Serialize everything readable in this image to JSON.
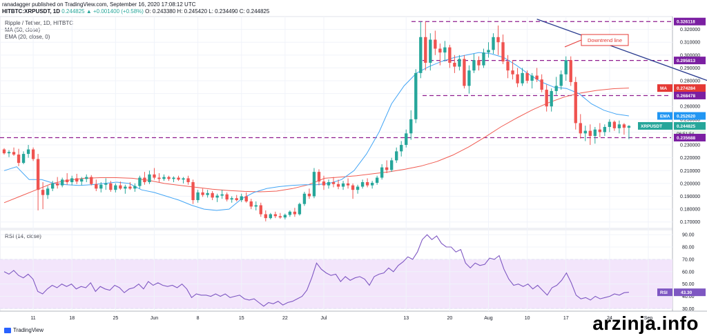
{
  "header": {
    "published": "ranadagger published on TradingView.com, September 16, 2020 17:08:12 UTC",
    "symbol": "HITBTC:XRPUSDT, 1D",
    "change": "0.244825 ▲ +0.001400 (+0.58%)",
    "ohlc": "O: 0.243380 H: 0.245420 L: 0.234490 C: 0.244825"
  },
  "legend": {
    "title": "Ripple / Tether, 1D, HITBTC",
    "ma": "MA (50, close)",
    "ema": "EMA (20, close, 0)",
    "rsi": "RSI (14, close)"
  },
  "annotation": "Downtrend line",
  "footer": {
    "brand": "TradingView",
    "watermark": "arzinja.info"
  },
  "colors": {
    "up": "#26a69a",
    "down": "#ef5350",
    "ma": "#f05a50",
    "ema": "#42a5f5",
    "trend": "#2a3b8f",
    "dash": "#8e1b8e",
    "rsi": "#7e57c2",
    "rsiband": "#f3e5fb"
  },
  "chart_data": [
    {
      "type": "candlestick",
      "title": "Ripple / Tether, 1D, HITBTC",
      "currency": "USDT",
      "ylim": [
        0.165,
        0.33
      ],
      "y_ticks": [
        0.17,
        0.18,
        0.19,
        0.2,
        0.21,
        0.22,
        0.23,
        0.24,
        0.25,
        0.26,
        0.27,
        0.28,
        0.29,
        0.3,
        0.31,
        0.32
      ],
      "x_ticks": [
        "11",
        "18",
        "25",
        "Jun",
        "8",
        "15",
        "22",
        "Jul",
        "13",
        "20",
        "Aug",
        "10",
        "17",
        "24",
        "Sep",
        "14"
      ],
      "horizontal_levels": [
        0.326118,
        0.295813,
        0.268478,
        0.235688
      ],
      "price_tags": {
        "resistance_top": "0.326118",
        "resistance_mid": "0.295813",
        "ma_value": "0.274284",
        "ma_label": "MA",
        "level_mid": "0.268478",
        "ema_value": "0.252620",
        "ema_label": "EMA",
        "symbol_tag": "XRPUSDT",
        "last_price": "0.244825",
        "countdown": "06:51:54",
        "support": "0.235688"
      },
      "downtrend_line": {
        "from_index": 110,
        "from_value": 0.328,
        "to_index": 149,
        "to_value": 0.275
      },
      "candles": [
        [
          0.2265,
          0.2275,
          0.2225,
          0.2235
        ],
        [
          0.2235,
          0.226,
          0.2205,
          0.2245
        ],
        [
          0.2245,
          0.228,
          0.2215,
          0.2225
        ],
        [
          0.2225,
          0.227,
          0.2135,
          0.216
        ],
        [
          0.216,
          0.225,
          0.215,
          0.223
        ],
        [
          0.223,
          0.23,
          0.22,
          0.2265
        ],
        [
          0.2265,
          0.228,
          0.2175,
          0.219
        ],
        [
          0.219,
          0.223,
          0.179,
          0.195
        ],
        [
          0.195,
          0.201,
          0.18,
          0.191
        ],
        [
          0.191,
          0.198,
          0.188,
          0.196
        ],
        [
          0.196,
          0.202,
          0.194,
          0.2
        ],
        [
          0.2,
          0.205,
          0.196,
          0.1985
        ],
        [
          0.1985,
          0.2045,
          0.197,
          0.203
        ],
        [
          0.203,
          0.208,
          0.199,
          0.201
        ],
        [
          0.201,
          0.206,
          0.1985,
          0.204
        ],
        [
          0.204,
          0.2075,
          0.1995,
          0.2015
        ],
        [
          0.2015,
          0.205,
          0.1985,
          0.2035
        ],
        [
          0.2035,
          0.207,
          0.201,
          0.205
        ],
        [
          0.205,
          0.2065,
          0.1985,
          0.1995
        ],
        [
          0.1995,
          0.203,
          0.194,
          0.196
        ],
        [
          0.196,
          0.201,
          0.193,
          0.199
        ],
        [
          0.199,
          0.204,
          0.195,
          0.2
        ],
        [
          0.2,
          0.202,
          0.1935,
          0.195
        ],
        [
          0.195,
          0.2,
          0.193,
          0.1985
        ],
        [
          0.1985,
          0.2015,
          0.195,
          0.196
        ],
        [
          0.196,
          0.199,
          0.192,
          0.1975
        ],
        [
          0.1975,
          0.201,
          0.195,
          0.196
        ],
        [
          0.196,
          0.2,
          0.1935,
          0.198
        ],
        [
          0.198,
          0.206,
          0.196,
          0.2045
        ],
        [
          0.2045,
          0.209,
          0.199,
          0.201
        ],
        [
          0.201,
          0.21,
          0.1995,
          0.207
        ],
        [
          0.207,
          0.212,
          0.203,
          0.2045
        ],
        [
          0.2045,
          0.208,
          0.201,
          0.2035
        ],
        [
          0.2035,
          0.207,
          0.202,
          0.205
        ],
        [
          0.205,
          0.206,
          0.202,
          0.2035
        ],
        [
          0.2035,
          0.2055,
          0.201,
          0.2045
        ],
        [
          0.2045,
          0.206,
          0.202,
          0.203
        ],
        [
          0.203,
          0.205,
          0.2,
          0.204
        ],
        [
          0.204,
          0.206,
          0.199,
          0.201
        ],
        [
          0.201,
          0.203,
          0.184,
          0.187
        ],
        [
          0.187,
          0.195,
          0.185,
          0.193
        ],
        [
          0.193,
          0.196,
          0.1895,
          0.191
        ],
        [
          0.191,
          0.195,
          0.189,
          0.1925
        ],
        [
          0.1925,
          0.194,
          0.187,
          0.189
        ],
        [
          0.189,
          0.192,
          0.1855,
          0.1905
        ],
        [
          0.1905,
          0.195,
          0.188,
          0.1915
        ],
        [
          0.1915,
          0.193,
          0.186,
          0.1875
        ],
        [
          0.1875,
          0.19,
          0.185,
          0.1885
        ],
        [
          0.1885,
          0.191,
          0.186,
          0.187
        ],
        [
          0.187,
          0.192,
          0.1855,
          0.19
        ],
        [
          0.19,
          0.193,
          0.185,
          0.186
        ],
        [
          0.186,
          0.188,
          0.18,
          0.182
        ],
        [
          0.182,
          0.186,
          0.179,
          0.183
        ],
        [
          0.183,
          0.185,
          0.174,
          0.176
        ],
        [
          0.176,
          0.179,
          0.1705,
          0.173
        ],
        [
          0.173,
          0.177,
          0.172,
          0.176
        ],
        [
          0.176,
          0.178,
          0.173,
          0.1745
        ],
        [
          0.1745,
          0.177,
          0.1725,
          0.1735
        ],
        [
          0.1735,
          0.1765,
          0.172,
          0.1755
        ],
        [
          0.1755,
          0.179,
          0.174,
          0.178
        ],
        [
          0.178,
          0.181,
          0.174,
          0.176
        ],
        [
          0.176,
          0.185,
          0.175,
          0.184
        ],
        [
          0.184,
          0.1935,
          0.1825,
          0.192
        ],
        [
          0.192,
          0.196,
          0.188,
          0.19
        ],
        [
          0.19,
          0.212,
          0.1885,
          0.209
        ],
        [
          0.209,
          0.211,
          0.1985,
          0.2015
        ],
        [
          0.2015,
          0.206,
          0.195,
          0.1985
        ],
        [
          0.1985,
          0.203,
          0.196,
          0.201
        ],
        [
          0.201,
          0.205,
          0.197,
          0.1995
        ],
        [
          0.1995,
          0.203,
          0.1955,
          0.1975
        ],
        [
          0.1975,
          0.202,
          0.195,
          0.2
        ],
        [
          0.2,
          0.204,
          0.196,
          0.1985
        ],
        [
          0.1985,
          0.2,
          0.188,
          0.195
        ],
        [
          0.195,
          0.199,
          0.192,
          0.1975
        ],
        [
          0.1975,
          0.203,
          0.196,
          0.201
        ],
        [
          0.201,
          0.204,
          0.197,
          0.1985
        ],
        [
          0.1985,
          0.202,
          0.196,
          0.2005
        ],
        [
          0.2005,
          0.206,
          0.199,
          0.2045
        ],
        [
          0.2045,
          0.215,
          0.203,
          0.2125
        ],
        [
          0.2125,
          0.218,
          0.208,
          0.2105
        ],
        [
          0.2105,
          0.22,
          0.209,
          0.218
        ],
        [
          0.218,
          0.228,
          0.216,
          0.225
        ],
        [
          0.225,
          0.233,
          0.221,
          0.23
        ],
        [
          0.23,
          0.242,
          0.228,
          0.239
        ],
        [
          0.239,
          0.257,
          0.234,
          0.25
        ],
        [
          0.25,
          0.289,
          0.247,
          0.286
        ],
        [
          0.286,
          0.326,
          0.282,
          0.314
        ],
        [
          0.314,
          0.326,
          0.288,
          0.294
        ],
        [
          0.294,
          0.317,
          0.288,
          0.312
        ],
        [
          0.312,
          0.319,
          0.3,
          0.305
        ],
        [
          0.305,
          0.309,
          0.292,
          0.302
        ],
        [
          0.302,
          0.311,
          0.295,
          0.306
        ],
        [
          0.306,
          0.308,
          0.29,
          0.294
        ],
        [
          0.294,
          0.3,
          0.286,
          0.291
        ],
        [
          0.291,
          0.3,
          0.288,
          0.297
        ],
        [
          0.297,
          0.3,
          0.274,
          0.276
        ],
        [
          0.276,
          0.292,
          0.27,
          0.288
        ],
        [
          0.288,
          0.301,
          0.286,
          0.296
        ],
        [
          0.296,
          0.299,
          0.288,
          0.292
        ],
        [
          0.292,
          0.305,
          0.29,
          0.302
        ],
        [
          0.302,
          0.31,
          0.298,
          0.304
        ],
        [
          0.304,
          0.317,
          0.301,
          0.314
        ],
        [
          0.314,
          0.323,
          0.3,
          0.31
        ],
        [
          0.31,
          0.316,
          0.293,
          0.295
        ],
        [
          0.295,
          0.3,
          0.282,
          0.288
        ],
        [
          0.288,
          0.296,
          0.281,
          0.285
        ],
        [
          0.285,
          0.29,
          0.275,
          0.278
        ],
        [
          0.278,
          0.29,
          0.276,
          0.286
        ],
        [
          0.286,
          0.288,
          0.278,
          0.28
        ],
        [
          0.28,
          0.286,
          0.274,
          0.284
        ],
        [
          0.284,
          0.29,
          0.279,
          0.281
        ],
        [
          0.281,
          0.285,
          0.271,
          0.273
        ],
        [
          0.273,
          0.277,
          0.256,
          0.26
        ],
        [
          0.26,
          0.274,
          0.256,
          0.272
        ],
        [
          0.272,
          0.283,
          0.269,
          0.276
        ],
        [
          0.276,
          0.288,
          0.273,
          0.285
        ],
        [
          0.285,
          0.299,
          0.28,
          0.296
        ],
        [
          0.296,
          0.299,
          0.276,
          0.279
        ],
        [
          0.279,
          0.283,
          0.242,
          0.247
        ],
        [
          0.247,
          0.254,
          0.235,
          0.239
        ],
        [
          0.239,
          0.245,
          0.233,
          0.241
        ],
        [
          0.241,
          0.246,
          0.23,
          0.237
        ],
        [
          0.237,
          0.244,
          0.231,
          0.242
        ],
        [
          0.242,
          0.247,
          0.236,
          0.24
        ],
        [
          0.24,
          0.246,
          0.237,
          0.244
        ],
        [
          0.244,
          0.25,
          0.24,
          0.248
        ],
        [
          0.248,
          0.249,
          0.241,
          0.243
        ],
        [
          0.243,
          0.249,
          0.239,
          0.246
        ],
        [
          0.246,
          0.247,
          0.238,
          0.2434
        ],
        [
          0.2434,
          0.2454,
          0.2345,
          0.2448
        ]
      ],
      "ma50": [
        0.204,
        0.205,
        0.206,
        0.2075,
        0.209,
        0.211,
        0.2135,
        0.217,
        0.222,
        0.2285,
        0.236,
        0.244,
        0.251,
        0.2575,
        0.263,
        0.2675,
        0.2705,
        0.2725,
        0.2738,
        0.2743
      ],
      "ema20": [
        0.262,
        0.276,
        0.286,
        0.291,
        0.295,
        0.298,
        0.3,
        0.302,
        0.301,
        0.298,
        0.292,
        0.285,
        0.279,
        0.275,
        0.274,
        0.27,
        0.262,
        0.257,
        0.254,
        0.2526
      ]
    },
    {
      "type": "line",
      "title": "RSI (14, close)",
      "ylim": [
        28,
        94
      ],
      "y_ticks": [
        30,
        40,
        50,
        60,
        70,
        80,
        90
      ],
      "band": [
        30,
        70
      ],
      "last_value_label": "43.30",
      "tag_label": "RSI",
      "values": [
        60,
        58,
        61,
        57,
        55,
        58,
        54,
        44,
        42,
        46,
        49,
        47,
        50,
        48,
        50,
        46,
        48,
        47,
        51,
        44,
        48,
        46,
        45,
        49,
        47,
        43,
        46,
        47,
        50,
        46,
        52,
        49,
        51,
        49,
        48,
        49,
        47,
        50,
        46,
        39,
        42,
        41,
        41,
        40,
        42,
        40,
        42,
        39,
        40,
        41,
        38,
        37,
        38,
        35,
        32,
        35,
        34,
        36,
        33,
        35,
        36,
        38,
        40,
        45,
        55,
        67,
        62,
        59,
        57,
        58,
        52,
        56,
        53,
        55,
        56,
        54,
        49,
        56,
        58,
        59,
        63,
        60,
        65,
        68,
        72,
        70,
        76,
        86,
        90,
        86,
        89,
        83,
        80,
        80,
        76,
        78,
        67,
        63,
        67,
        65,
        66,
        71,
        70,
        73,
        62,
        54,
        49,
        50,
        48,
        50,
        46,
        49,
        45,
        41,
        47,
        49,
        53,
        59,
        51,
        41,
        38,
        39,
        37,
        40,
        38,
        39,
        40,
        42,
        41,
        43,
        43.3
      ]
    }
  ]
}
